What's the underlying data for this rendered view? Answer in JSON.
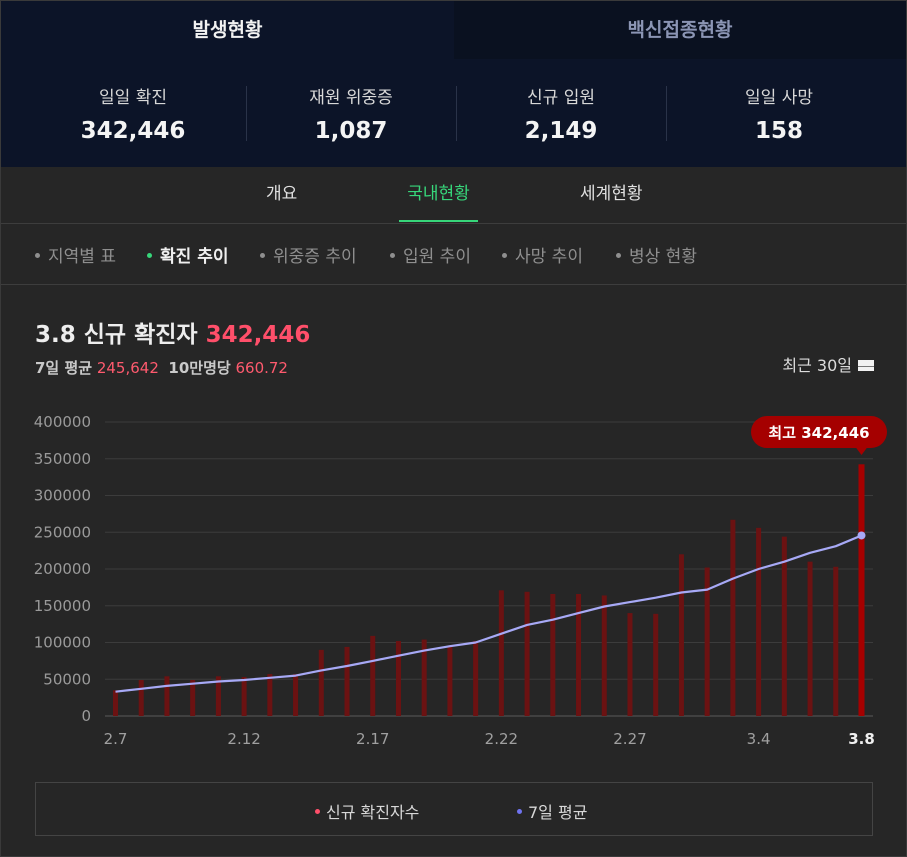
{
  "top": {
    "tabs": [
      "발생현황",
      "백신접종현황"
    ],
    "stats": [
      {
        "label": "일일 확진",
        "value": "342,446"
      },
      {
        "label": "재원 위중증",
        "value": "1,087"
      },
      {
        "label": "신규 입원",
        "value": "2,149"
      },
      {
        "label": "일일 사망",
        "value": "158"
      }
    ]
  },
  "main_tabs": [
    "개요",
    "국내현황",
    "세계현황"
  ],
  "sub_tabs": [
    "지역별 표",
    "확진 추이",
    "위중증 추이",
    "입원 추이",
    "사망 추이",
    "병상 현황"
  ],
  "header": {
    "title": "3.8 신규 확진자",
    "title_value": "342,446",
    "avg_label": "7일 평균",
    "avg_value": "245,642",
    "per100k_label": "10만명당",
    "per100k_value": "660.72",
    "range_label": "최근 30일"
  },
  "tooltip": "최고 342,446",
  "legend": {
    "new": "신규 확진자수",
    "avg": "7일 평균"
  },
  "colors": {
    "bar": "#6b1212",
    "bar_last": "#a50000",
    "line": "#a7a9f6",
    "accent_green": "#37d67a",
    "accent_red": "#ff4f6a"
  },
  "chart_data": {
    "type": "bar",
    "x_ticks": [
      "2.7",
      "2.12",
      "2.17",
      "2.22",
      "2.27",
      "3.4",
      "3.8"
    ],
    "ylim": [
      0,
      400000
    ],
    "y_ticks": [
      "400000",
      "350000",
      "300000",
      "250000",
      "200000",
      "150000",
      "100000",
      "50000",
      "0"
    ],
    "series": [
      {
        "name": "신규 확진자수",
        "values": [
          35000,
          49000,
          54000,
          49000,
          54000,
          53000,
          57000,
          57000,
          90000,
          94000,
          109000,
          102000,
          104000,
          96000,
          102000,
          171000,
          169000,
          166000,
          166000,
          164000,
          140000,
          139000,
          220000,
          202000,
          267000,
          256000,
          244000,
          210000,
          203000,
          342446
        ]
      },
      {
        "name": "7일 평균",
        "values": [
          33000,
          37000,
          41000,
          44000,
          47000,
          49000,
          52000,
          55000,
          62000,
          68000,
          75000,
          82000,
          89000,
          95000,
          100000,
          112000,
          124000,
          131000,
          140000,
          149000,
          155000,
          161000,
          168000,
          172000,
          187000,
          200000,
          210000,
          222000,
          231000,
          245642
        ]
      }
    ]
  }
}
